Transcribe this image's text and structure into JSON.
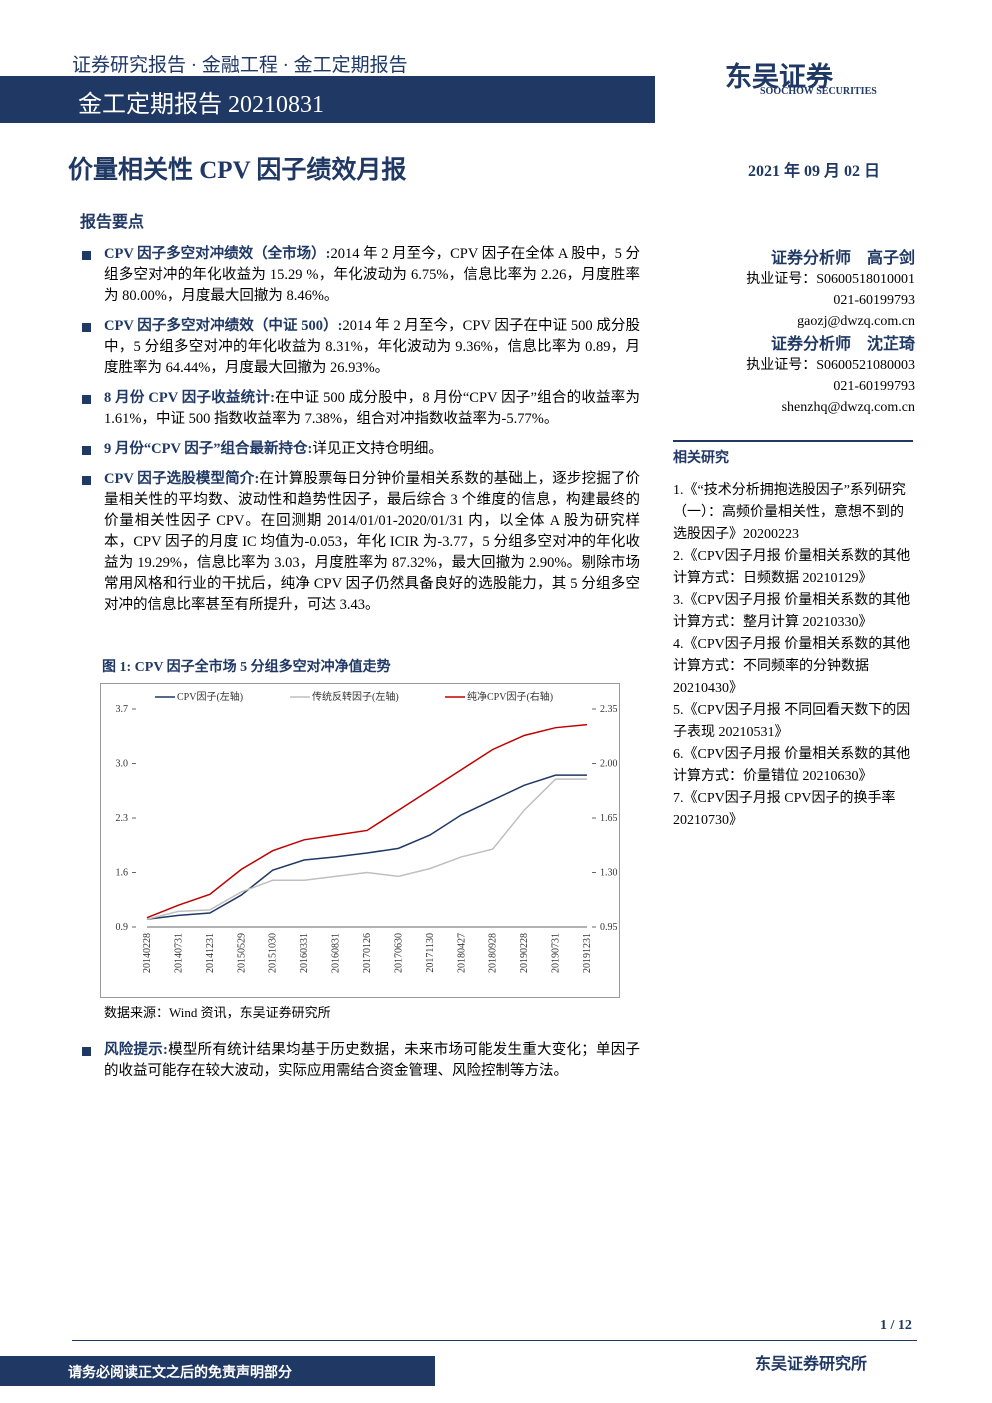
{
  "header": {
    "series": "证券研究报告 · 金融工程 · 金工定期报告",
    "report": "金工定期报告 20210831",
    "logo": "东吴证券",
    "logo_en": "SOOCHOW SECURITIES"
  },
  "title": "价量相关性 CPV 因子绩效月报",
  "date": "2021 年 09 月 02 日",
  "section": "报告要点",
  "bullets": [
    {
      "head": "CPV 因子多空对冲绩效（全市场）:",
      "text": "2014 年 2 月至今，CPV 因子在全体 A 股中，5 分组多空对冲的年化收益为 15.29 %，年化波动为 6.75%，信息比率为 2.26，月度胜率为 80.00%，月度最大回撤为 8.46%。"
    },
    {
      "head": "CPV 因子多空对冲绩效（中证 500）:",
      "text": "2014 年 2 月至今，CPV 因子在中证 500 成分股中，5 分组多空对冲的年化收益为 8.31%，年化波动为 9.36%，信息比率为 0.89，月度胜率为 64.44%，月度最大回撤为 26.93%。"
    },
    {
      "head": "8 月份 CPV 因子收益统计:",
      "text": "在中证 500 成分股中，8 月份“CPV 因子”组合的收益率为 1.61%，中证 500 指数收益率为 7.38%，组合对冲指数收益率为-5.77%。"
    },
    {
      "head": "9 月份“CPV 因子”组合最新持仓:",
      "text": "详见正文持仓明细。"
    },
    {
      "head": "CPV 因子选股模型简介:",
      "text": "在计算股票每日分钟价量相关系数的基础上，逐步挖掘了价量相关性的平均数、波动性和趋势性因子，最后综合 3 个维度的信息，构建最终的价量相关性因子 CPV。在回测期 2014/01/01-2020/01/31 内，以全体 A 股为研究样本，CPV 因子的月度 IC 均值为-0.053，年化 ICIR 为-3.77，5 分组多空对冲的年化收益为 19.29%，信息比率为 3.03，月度胜率为 87.32%，最大回撤为 2.90%。剔除市场常用风格和行业的干扰后，纯净 CPV 因子仍然具备良好的选股能力，其 5 分组多空对冲的信息比率甚至有所提升，可达 3.43。"
    }
  ],
  "analysts": [
    {
      "role": "证券分析师",
      "name": "高子剑",
      "license": "执业证号：S0600518010001",
      "phone": "021-60199793",
      "email": "gaozj@dwzq.com.cn"
    },
    {
      "role": "证券分析师",
      "name": "沈芷琦",
      "license": "执业证号：S0600521080003",
      "phone": "021-60199793",
      "email": "shenzhq@dwzq.com.cn"
    }
  ],
  "related": {
    "title": "相关研究",
    "items": [
      "1.《“技术分析拥抱选股因子”系列研究（一）：高频价量相关性，意想不到的选股因子》20200223",
      "2.《CPV因子月报 价量相关系数的其他计算方式：日频数据 20210129》",
      "3.《CPV因子月报 价量相关系数的其他计算方式：整月计算 20210330》",
      "4.《CPV因子月报 价量相关系数的其他计算方式：不同频率的分钟数据 20210430》",
      "5.《CPV因子月报 不同回看天数下的因子表现 20210531》",
      "6.《CPV因子月报 价量相关系数的其他计算方式：价量错位 20210630》",
      "7.《CPV因子月报 CPV因子的换手率 20210730》"
    ]
  },
  "figure_title": "图 1:  CPV 因子全市场 5 分组多空对冲净值走势",
  "chart_data": {
    "type": "line",
    "categories": [
      "20140228",
      "20140731",
      "20141231",
      "20150529",
      "20151030",
      "20160331",
      "20160831",
      "20170126",
      "20170630",
      "20171130",
      "20180427",
      "20180928",
      "20190228",
      "20190731",
      "20191231"
    ],
    "series": [
      {
        "name": "CPV因子(左轴)",
        "color": "#1f3864",
        "values": [
          1.0,
          1.05,
          1.08,
          1.31,
          1.63,
          1.76,
          1.8,
          1.85,
          1.91,
          2.08,
          2.34,
          2.53,
          2.72,
          2.85,
          2.85
        ]
      },
      {
        "name": "传统反转因子(左轴)",
        "color": "#bfbfbf",
        "values": [
          1.0,
          1.1,
          1.12,
          1.35,
          1.5,
          1.5,
          1.55,
          1.6,
          1.55,
          1.65,
          1.8,
          1.9,
          2.4,
          2.8,
          2.8
        ]
      },
      {
        "name": "纯净CPV因子(右轴)",
        "color": "#c00000",
        "axis": "y2",
        "values": [
          1.01,
          1.09,
          1.16,
          1.32,
          1.44,
          1.51,
          1.54,
          1.57,
          1.7,
          1.83,
          1.96,
          2.09,
          2.18,
          2.23,
          2.25
        ]
      }
    ],
    "ylim": [
      0.9,
      3.7
    ],
    "yticks": [
      0.9,
      1.6,
      2.3,
      {
        "value": 3,
        "label": "3.0"
      },
      3.7
    ],
    "y2lim": [
      0.95,
      2.35
    ],
    "y2ticks": [
      0.95,
      {
        "value": 1.3,
        "label": "1.30"
      },
      1.65,
      {
        "value": 2,
        "label": "2.00"
      },
      2.35
    ]
  },
  "source": "数据来源：Wind 资讯，东吴证券研究所",
  "risk": {
    "head": "风险提示:",
    "text": "模型所有统计结果均基于历史数据，未来市场可能发生重大变化；单因子的收益可能存在较大波动，实际应用需结合资金管理、风险控制等方法。"
  },
  "footer": {
    "page": "1 / 12",
    "disclaimer": "请务必阅读正文之后的免责声明部分",
    "org": "东吴证券研究所"
  }
}
